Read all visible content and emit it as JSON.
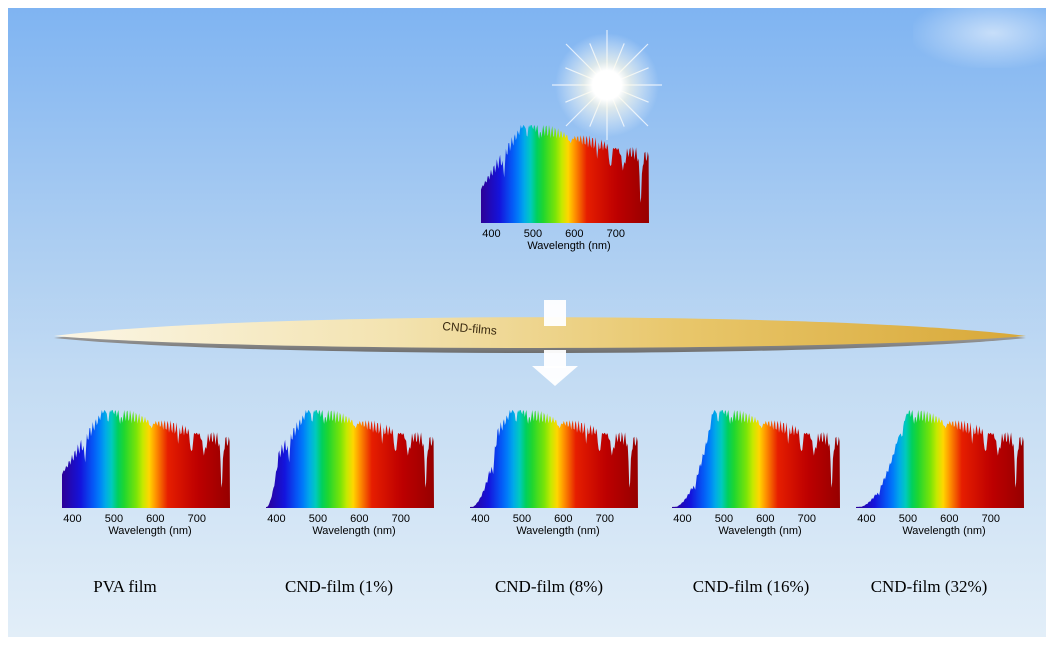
{
  "film_label": "CND-films",
  "spectra": [
    {
      "id": "sunlight",
      "label": "",
      "ticks": [
        "400",
        "500",
        "600",
        "700"
      ],
      "xlabel": "Wavelength (nm)",
      "uv_cut": 0.0
    },
    {
      "id": "pva",
      "label": "PVA film",
      "ticks": [
        "400",
        "500",
        "600",
        "700"
      ],
      "xlabel": "Wavelength (nm)",
      "uv_cut": 0.0
    },
    {
      "id": "cnd1",
      "label": "CND-film (1%)",
      "ticks": [
        "400",
        "500",
        "600",
        "700"
      ],
      "xlabel": "Wavelength (nm)",
      "uv_cut": 0.1
    },
    {
      "id": "cnd8",
      "label": "CND-film (8%)",
      "ticks": [
        "400",
        "500",
        "600",
        "700"
      ],
      "xlabel": "Wavelength (nm)",
      "uv_cut": 0.45
    },
    {
      "id": "cnd16",
      "label": "CND-film (16%)",
      "ticks": [
        "400",
        "500",
        "600",
        "700"
      ],
      "xlabel": "Wavelength (nm)",
      "uv_cut": 0.75
    },
    {
      "id": "cnd32",
      "label": "CND-film (32%)",
      "ticks": [
        "400",
        "500",
        "600",
        "700"
      ],
      "xlabel": "Wavelength (nm)",
      "uv_cut": 1.0
    }
  ]
}
